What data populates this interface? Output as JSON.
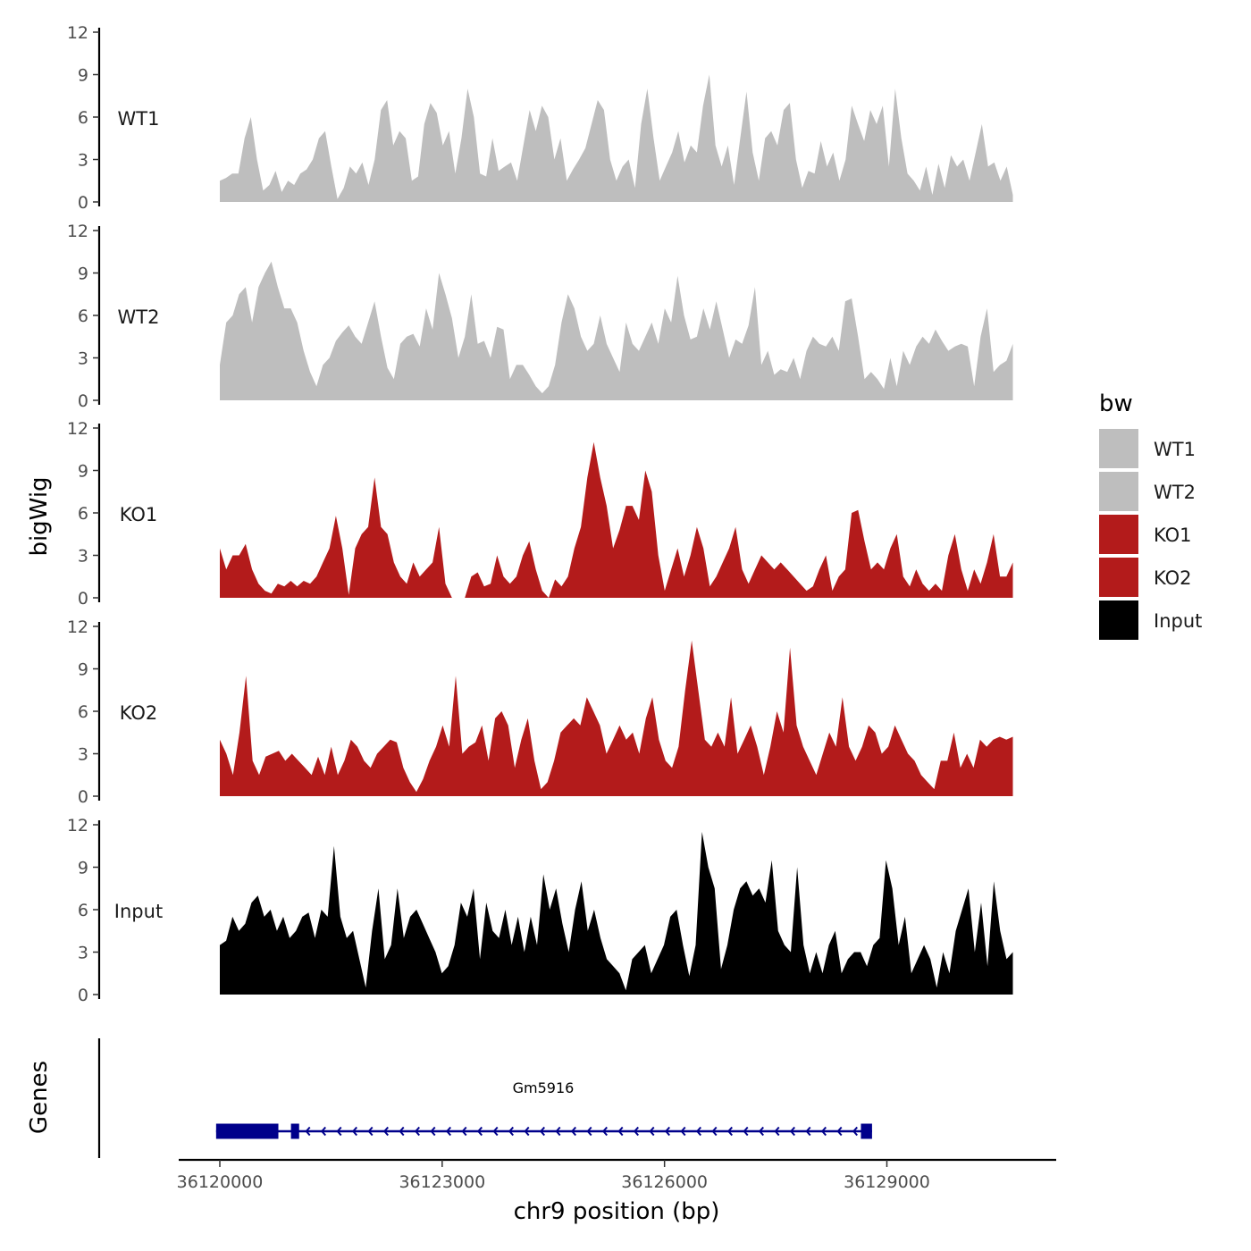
{
  "chart_data": {
    "type": "area",
    "ylabel": "bigWig",
    "xlabel": "chr9 position (bp)",
    "gene_track_label": "Genes",
    "x_range": [
      36120000,
      36130700
    ],
    "x_ticks": [
      36120000,
      36123000,
      36126000,
      36129000
    ],
    "x_tick_labels": [
      "36120000",
      "36123000",
      "36126000",
      "36129000"
    ],
    "y_range": [
      0,
      12
    ],
    "y_ticks": [
      0,
      3,
      6,
      9,
      12
    ],
    "y_tick_labels": [
      "0",
      "3",
      "6",
      "9",
      "12"
    ],
    "legend": {
      "title": "bw",
      "position": "right",
      "entries": [
        {
          "label": "WT1",
          "color": "#bebebe"
        },
        {
          "label": "WT2",
          "color": "#bebebe"
        },
        {
          "label": "KO1",
          "color": "#b31b1b"
        },
        {
          "label": "KO2",
          "color": "#b31b1b"
        },
        {
          "label": "Input",
          "color": "#000000"
        }
      ]
    },
    "series": [
      {
        "name": "WT1",
        "color": "#bebebe",
        "x_start": 36120000,
        "x_end": 36130700,
        "values": [
          1.5,
          1.7,
          2.0,
          2.0,
          4.5,
          6.0,
          3.0,
          0.8,
          1.2,
          2.2,
          0.7,
          1.5,
          1.2,
          2.0,
          2.3,
          3.0,
          4.5,
          5.0,
          2.5,
          0.2,
          1.0,
          2.5,
          2.0,
          2.8,
          1.2,
          3.0,
          6.5,
          7.2,
          4.0,
          5.0,
          4.5,
          1.5,
          1.8,
          5.5,
          7.0,
          6.3,
          4.0,
          5.0,
          2.0,
          4.5,
          8.0,
          6.0,
          2.0,
          1.8,
          4.5,
          2.2,
          2.5,
          2.8,
          1.5,
          4.0,
          6.5,
          5.0,
          6.8,
          6.0,
          3.0,
          4.5,
          1.5,
          2.3,
          3.0,
          3.8,
          5.5,
          7.2,
          6.5,
          3.0,
          1.5,
          2.5,
          3.0,
          1.0,
          5.5,
          8.0,
          4.5,
          1.5,
          2.5,
          3.5,
          5.0,
          2.8,
          4.0,
          3.5,
          6.8,
          9.0,
          4.0,
          2.5,
          4.0,
          1.2,
          4.5,
          7.8,
          3.5,
          1.5,
          4.5,
          5.0,
          4.0,
          6.5,
          7.0,
          3.0,
          1.0,
          2.2,
          2.0,
          4.3,
          2.5,
          3.5,
          1.5,
          3.0,
          6.8,
          5.5,
          4.3,
          6.5,
          5.5,
          6.8,
          2.5,
          8.0,
          4.5,
          2.0,
          1.5,
          0.8,
          2.5,
          0.5,
          2.7,
          1.0,
          3.3,
          2.5,
          3.0,
          1.5,
          3.5,
          5.5,
          2.5,
          2.8,
          1.5,
          2.5,
          0.5
        ],
        "label_position": "left"
      },
      {
        "name": "WT2",
        "color": "#bebebe",
        "x_start": 36120000,
        "x_end": 36130700,
        "values": [
          2.5,
          5.5,
          6.0,
          7.5,
          8.0,
          5.5,
          8.0,
          9.0,
          9.8,
          8.0,
          6.5,
          6.5,
          5.5,
          3.5,
          2.0,
          1.0,
          2.5,
          3.0,
          4.2,
          4.8,
          5.3,
          4.5,
          4.0,
          5.5,
          7.0,
          4.5,
          2.3,
          1.5,
          4.0,
          4.5,
          4.7,
          3.8,
          6.5,
          5.0,
          9.0,
          7.5,
          5.8,
          3.0,
          4.5,
          7.5,
          4.0,
          4.2,
          3.0,
          5.2,
          5.0,
          1.5,
          2.5,
          2.5,
          1.8,
          1.0,
          0.5,
          1.0,
          2.5,
          5.5,
          7.5,
          6.5,
          4.5,
          3.5,
          4.0,
          6.0,
          4.0,
          3.0,
          2.0,
          5.5,
          4.0,
          3.5,
          4.5,
          5.5,
          4.0,
          6.5,
          5.5,
          8.8,
          6.0,
          4.3,
          4.5,
          6.5,
          5.0,
          7.0,
          5.0,
          3.0,
          4.3,
          4.0,
          5.3,
          8.0,
          2.5,
          3.5,
          1.8,
          2.2,
          2.0,
          3.0,
          1.5,
          3.5,
          4.5,
          4.0,
          3.8,
          4.5,
          3.5,
          7.0,
          7.2,
          4.5,
          1.5,
          2.0,
          1.5,
          0.8,
          3.0,
          1.0,
          3.5,
          2.5,
          3.8,
          4.5,
          4.0,
          5.0,
          4.2,
          3.5,
          3.8,
          4.0,
          3.8,
          1.0,
          4.5,
          6.5,
          2.0,
          2.5,
          2.8,
          4.0
        ],
        "label_position": "left"
      },
      {
        "name": "KO1",
        "color": "#b31b1b",
        "x_start": 36120000,
        "x_end": 36130700,
        "values": [
          3.5,
          2.0,
          3.0,
          3.0,
          3.8,
          2.0,
          1.0,
          0.5,
          0.3,
          1.0,
          0.8,
          1.2,
          0.8,
          1.2,
          1.0,
          1.5,
          2.5,
          3.5,
          5.8,
          3.5,
          0.2,
          3.5,
          4.5,
          5.0,
          8.5,
          5.0,
          4.5,
          2.5,
          1.5,
          1.0,
          2.5,
          1.5,
          2.0,
          2.5,
          5.0,
          1.0,
          0.0,
          0.0,
          0.0,
          1.5,
          1.8,
          0.8,
          1.0,
          3.0,
          1.5,
          1.0,
          1.5,
          3.0,
          4.0,
          2.0,
          0.5,
          0.0,
          1.3,
          0.8,
          1.5,
          3.5,
          5.0,
          8.5,
          11.0,
          8.5,
          6.5,
          3.5,
          4.8,
          6.5,
          6.5,
          5.5,
          9.0,
          7.5,
          3.0,
          0.5,
          2.0,
          3.5,
          1.5,
          3.0,
          5.0,
          3.5,
          0.8,
          1.5,
          2.5,
          3.5,
          5.0,
          2.0,
          1.0,
          2.0,
          3.0,
          2.5,
          2.0,
          2.5,
          2.0,
          1.5,
          1.0,
          0.5,
          0.8,
          2.0,
          3.0,
          0.5,
          1.5,
          2.0,
          6.0,
          6.2,
          4.0,
          2.0,
          2.5,
          2.0,
          3.5,
          4.5,
          1.5,
          0.8,
          2.0,
          1.0,
          0.5,
          1.0,
          0.5,
          3.0,
          4.5,
          2.0,
          0.5,
          2.0,
          1.0,
          2.5,
          4.5,
          1.5,
          1.5,
          2.5
        ],
        "label_position": "left"
      },
      {
        "name": "KO2",
        "color": "#b31b1b",
        "x_start": 36120000,
        "x_end": 36130700,
        "values": [
          4.0,
          3.0,
          1.5,
          4.5,
          8.5,
          2.5,
          1.5,
          2.8,
          3.0,
          3.2,
          2.5,
          3.0,
          2.5,
          2.0,
          1.5,
          2.8,
          1.5,
          3.5,
          1.5,
          2.5,
          4.0,
          3.5,
          2.5,
          2.0,
          3.0,
          3.5,
          4.0,
          3.8,
          2.0,
          1.0,
          0.3,
          1.2,
          2.5,
          3.5,
          5.0,
          3.5,
          8.5,
          3.0,
          3.5,
          3.8,
          5.0,
          2.5,
          5.5,
          6.0,
          5.0,
          2.0,
          4.0,
          5.5,
          2.5,
          0.5,
          1.0,
          2.5,
          4.5,
          5.0,
          5.5,
          5.0,
          7.0,
          6.0,
          5.0,
          3.0,
          4.0,
          5.0,
          4.0,
          4.5,
          3.0,
          5.5,
          7.0,
          4.0,
          2.5,
          2.0,
          3.5,
          7.5,
          11.0,
          7.5,
          4.0,
          3.5,
          4.5,
          3.5,
          7.0,
          3.0,
          4.0,
          5.0,
          3.5,
          1.5,
          3.5,
          6.0,
          4.5,
          10.5,
          5.0,
          3.5,
          2.5,
          1.5,
          3.0,
          4.5,
          3.5,
          7.0,
          3.5,
          2.5,
          3.5,
          5.0,
          4.5,
          3.0,
          3.5,
          5.0,
          4.0,
          3.0,
          2.5,
          1.5,
          1.0,
          0.5,
          2.5,
          2.5,
          4.5,
          2.0,
          3.0,
          2.0,
          4.0,
          3.5,
          4.0,
          4.2,
          4.0,
          4.2
        ],
        "label_position": "left"
      },
      {
        "name": "Input",
        "color": "#000000",
        "x_start": 36120000,
        "x_end": 36130700,
        "values": [
          3.5,
          3.8,
          5.5,
          4.5,
          5.0,
          6.5,
          7.0,
          5.5,
          6.0,
          4.5,
          5.5,
          4.0,
          4.5,
          5.5,
          5.8,
          4.0,
          6.0,
          5.5,
          10.5,
          5.5,
          4.0,
          4.5,
          2.5,
          0.5,
          4.5,
          7.5,
          2.5,
          3.5,
          7.5,
          4.0,
          5.5,
          6.0,
          5.0,
          4.0,
          3.0,
          1.5,
          2.0,
          3.5,
          6.5,
          5.5,
          7.5,
          2.5,
          6.5,
          4.5,
          4.0,
          6.0,
          3.5,
          5.5,
          3.0,
          5.5,
          3.5,
          8.5,
          6.0,
          7.5,
          5.0,
          3.0,
          6.0,
          8.0,
          4.5,
          6.0,
          4.0,
          2.5,
          2.0,
          1.5,
          0.3,
          2.5,
          3.0,
          3.5,
          1.5,
          2.5,
          3.5,
          5.5,
          6.0,
          3.5,
          1.3,
          3.5,
          11.5,
          9.0,
          7.5,
          1.8,
          3.5,
          6.0,
          7.5,
          8.0,
          7.0,
          7.5,
          6.5,
          9.5,
          4.5,
          3.5,
          3.0,
          9.0,
          3.5,
          1.5,
          3.0,
          1.5,
          3.5,
          4.5,
          1.5,
          2.5,
          3.0,
          3.0,
          2.0,
          3.5,
          4.0,
          9.5,
          7.5,
          3.5,
          5.5,
          1.5,
          2.5,
          3.5,
          2.5,
          0.5,
          3.0,
          1.5,
          4.5,
          6.0,
          7.5,
          3.0,
          6.5,
          2.0,
          8.0,
          4.5,
          2.5,
          3.0
        ],
        "label_position": "left"
      }
    ],
    "genes": [
      {
        "name": "Gm5916",
        "strand": "-",
        "start": 36119950,
        "end": 36128800,
        "color": "#00008b",
        "exons": [
          [
            36119950,
            36120790
          ],
          [
            36120960,
            36121070
          ],
          [
            36128650,
            36128800
          ]
        ]
      }
    ]
  }
}
